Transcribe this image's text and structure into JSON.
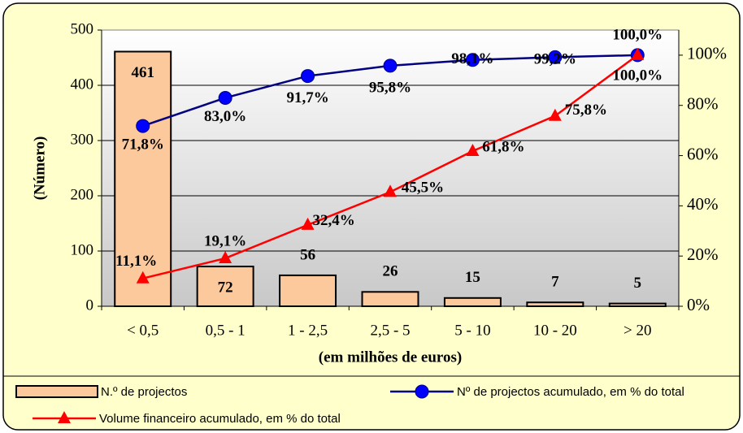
{
  "chart_data": {
    "type": "bar",
    "categories": [
      "< 0,5",
      "0,5 - 1",
      "1 - 2,5",
      "2,5 - 5",
      "5 - 10",
      "10 - 20",
      "> 20"
    ],
    "x_label": "(em milhões de euros)",
    "y_label": "(Número)",
    "ylim": [
      0,
      500
    ],
    "yticks": [
      0,
      100,
      200,
      300,
      400,
      500
    ],
    "y2lim": [
      0,
      110
    ],
    "y2ticks": [
      {
        "value": 0,
        "label": "0%"
      },
      {
        "value": 20,
        "label": "20%"
      },
      {
        "value": 40,
        "label": "40%"
      },
      {
        "value": 60,
        "label": "60%"
      },
      {
        "value": 80,
        "label": "80%"
      },
      {
        "value": 100,
        "label": "100%"
      }
    ],
    "grid": true,
    "series": [
      {
        "name": "N.º de projectos",
        "type": "bar",
        "color": "#fcc99c",
        "values": [
          461,
          72,
          56,
          26,
          15,
          7,
          5
        ]
      },
      {
        "name": "Nº de projectos acumulado, em % do total",
        "type": "line",
        "axis": "y2",
        "color": "#000080",
        "marker_color": "#0000ff",
        "marker": "circle",
        "values": [
          71.8,
          83.0,
          91.7,
          95.8,
          98.1,
          99.2,
          100.0
        ],
        "value_labels": [
          "71,8%",
          "83,0%",
          "91,7%",
          "95,8%",
          "98,1%",
          "99,2%",
          "100,0%"
        ]
      },
      {
        "name": "Volume financeiro acumulado, em % do total",
        "type": "line",
        "axis": "y2",
        "color": "#ff0000",
        "marker_color": "#ff0000",
        "marker": "triangle",
        "values": [
          11.1,
          19.1,
          32.4,
          45.5,
          61.8,
          75.8,
          100.0
        ],
        "value_labels": [
          "11,1%",
          "19,1%",
          "32,4%",
          "45,5%",
          "61,8%",
          "75,8%",
          "100,0%"
        ]
      }
    ]
  }
}
